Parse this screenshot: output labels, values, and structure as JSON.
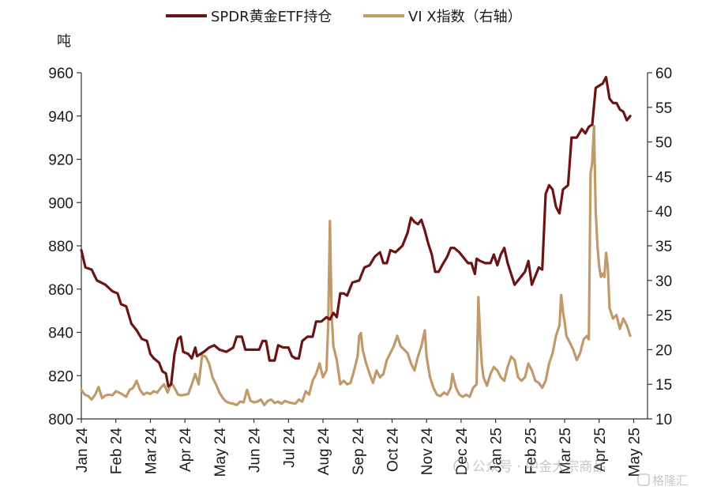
{
  "chart_data": {
    "type": "line",
    "title": "",
    "legend_placement": "top",
    "x_labels": [
      "Jan 24",
      "Feb 24",
      "Mar 24",
      "Apr 24",
      "May 24",
      "Jun 24",
      "Jul 24",
      "Aug 24",
      "Sep 24",
      "Oct 24",
      "Nov 24",
      "Dec 24",
      "Jan 25",
      "Feb 25",
      "Mar 25",
      "Apr 25",
      "May 25"
    ],
    "x_range": [
      0,
      16.4
    ],
    "y_left": {
      "label": "吨",
      "min": 800,
      "max": 960,
      "ticks": [
        800,
        820,
        840,
        860,
        880,
        900,
        920,
        940,
        960
      ]
    },
    "y_right": {
      "label": "",
      "min": 10,
      "max": 60,
      "ticks": [
        10,
        15,
        20,
        25,
        30,
        35,
        40,
        45,
        50,
        55,
        60
      ]
    },
    "series": [
      {
        "name": "SPDR黄金ETF持仓",
        "axis": "left",
        "color": "#6b1414",
        "points": [
          [
            0,
            878
          ],
          [
            0.12,
            870
          ],
          [
            0.3,
            869
          ],
          [
            0.45,
            864
          ],
          [
            0.7,
            862
          ],
          [
            0.9,
            859
          ],
          [
            1.05,
            858
          ],
          [
            1.15,
            853
          ],
          [
            1.3,
            852
          ],
          [
            1.45,
            844
          ],
          [
            1.6,
            841
          ],
          [
            1.75,
            837
          ],
          [
            1.9,
            836
          ],
          [
            2.0,
            830
          ],
          [
            2.1,
            828
          ],
          [
            2.25,
            826
          ],
          [
            2.35,
            822
          ],
          [
            2.45,
            821
          ],
          [
            2.52,
            815
          ],
          [
            2.6,
            816
          ],
          [
            2.7,
            830
          ],
          [
            2.8,
            837
          ],
          [
            2.88,
            838
          ],
          [
            2.95,
            831
          ],
          [
            3.1,
            830
          ],
          [
            3.2,
            828
          ],
          [
            3.3,
            833
          ],
          [
            3.35,
            829
          ],
          [
            3.55,
            831
          ],
          [
            3.7,
            833
          ],
          [
            3.85,
            834
          ],
          [
            4.0,
            832
          ],
          [
            4.2,
            831
          ],
          [
            4.4,
            833
          ],
          [
            4.5,
            838
          ],
          [
            4.65,
            838
          ],
          [
            4.75,
            832
          ],
          [
            4.9,
            832
          ],
          [
            5.15,
            832
          ],
          [
            5.25,
            836
          ],
          [
            5.35,
            836
          ],
          [
            5.45,
            827
          ],
          [
            5.6,
            827
          ],
          [
            5.7,
            834
          ],
          [
            5.85,
            833
          ],
          [
            6.0,
            833
          ],
          [
            6.1,
            829
          ],
          [
            6.2,
            828
          ],
          [
            6.3,
            828
          ],
          [
            6.4,
            836
          ],
          [
            6.55,
            838
          ],
          [
            6.7,
            838
          ],
          [
            6.8,
            845
          ],
          [
            6.95,
            845
          ],
          [
            7.1,
            847
          ],
          [
            7.2,
            846
          ],
          [
            7.3,
            849
          ],
          [
            7.4,
            847
          ],
          [
            7.5,
            858
          ],
          [
            7.6,
            858
          ],
          [
            7.7,
            857
          ],
          [
            7.85,
            863
          ],
          [
            8.05,
            864
          ],
          [
            8.2,
            870
          ],
          [
            8.35,
            871
          ],
          [
            8.5,
            875
          ],
          [
            8.65,
            877
          ],
          [
            8.75,
            872
          ],
          [
            8.85,
            872
          ],
          [
            8.95,
            878
          ],
          [
            9.1,
            877
          ],
          [
            9.3,
            880
          ],
          [
            9.45,
            886
          ],
          [
            9.55,
            893
          ],
          [
            9.65,
            891
          ],
          [
            9.75,
            890
          ],
          [
            9.85,
            892
          ],
          [
            9.95,
            887
          ],
          [
            10.05,
            881
          ],
          [
            10.15,
            876
          ],
          [
            10.25,
            868
          ],
          [
            10.35,
            868
          ],
          [
            10.45,
            871
          ],
          [
            10.6,
            875
          ],
          [
            10.7,
            879
          ],
          [
            10.8,
            879
          ],
          [
            10.95,
            877
          ],
          [
            11.05,
            875
          ],
          [
            11.2,
            872
          ],
          [
            11.3,
            872
          ],
          [
            11.4,
            867
          ],
          [
            11.45,
            874
          ],
          [
            11.55,
            873
          ],
          [
            11.7,
            872
          ],
          [
            11.85,
            872
          ],
          [
            11.95,
            876
          ],
          [
            12.05,
            871
          ],
          [
            12.15,
            876
          ],
          [
            12.25,
            879
          ],
          [
            12.35,
            872
          ],
          [
            12.45,
            867
          ],
          [
            12.55,
            862
          ],
          [
            12.65,
            864
          ],
          [
            12.75,
            866
          ],
          [
            12.85,
            868
          ],
          [
            12.95,
            873
          ],
          [
            13.05,
            862
          ],
          [
            13.15,
            866
          ],
          [
            13.25,
            870
          ],
          [
            13.35,
            869
          ],
          [
            13.45,
            904
          ],
          [
            13.55,
            908
          ],
          [
            13.65,
            906
          ],
          [
            13.75,
            898
          ],
          [
            13.85,
            895
          ],
          [
            13.95,
            906
          ],
          [
            14.1,
            908
          ],
          [
            14.2,
            930
          ],
          [
            14.35,
            930
          ],
          [
            14.5,
            934
          ],
          [
            14.6,
            932
          ],
          [
            14.7,
            935
          ],
          [
            14.8,
            936
          ],
          [
            14.9,
            953
          ],
          [
            15.0,
            954
          ],
          [
            15.1,
            955
          ],
          [
            15.2,
            958
          ],
          [
            15.3,
            948
          ],
          [
            15.4,
            946
          ],
          [
            15.5,
            946
          ],
          [
            15.6,
            943
          ],
          [
            15.7,
            942
          ],
          [
            15.8,
            938
          ],
          [
            15.9,
            940
          ]
        ]
      },
      {
        "name": "VI X指数（右轴）",
        "axis": "right",
        "color": "#c19a6b",
        "points": [
          [
            0,
            14.2
          ],
          [
            0.1,
            13.5
          ],
          [
            0.2,
            13.3
          ],
          [
            0.3,
            12.8
          ],
          [
            0.4,
            13.5
          ],
          [
            0.5,
            14.6
          ],
          [
            0.6,
            13.0
          ],
          [
            0.7,
            13.4
          ],
          [
            0.8,
            13.5
          ],
          [
            0.9,
            13.4
          ],
          [
            1.0,
            14.0
          ],
          [
            1.1,
            13.8
          ],
          [
            1.2,
            13.5
          ],
          [
            1.3,
            13.2
          ],
          [
            1.4,
            14.2
          ],
          [
            1.5,
            14.5
          ],
          [
            1.6,
            15.5
          ],
          [
            1.7,
            14.2
          ],
          [
            1.8,
            13.5
          ],
          [
            1.9,
            13.8
          ],
          [
            2.0,
            13.6
          ],
          [
            2.1,
            14.0
          ],
          [
            2.2,
            13.8
          ],
          [
            2.3,
            14.5
          ],
          [
            2.4,
            15.0
          ],
          [
            2.5,
            13.8
          ],
          [
            2.6,
            15.2
          ],
          [
            2.7,
            14.5
          ],
          [
            2.8,
            13.5
          ],
          [
            2.9,
            13.4
          ],
          [
            3.0,
            13.5
          ],
          [
            3.1,
            13.6
          ],
          [
            3.2,
            15.0
          ],
          [
            3.3,
            16.5
          ],
          [
            3.4,
            15.0
          ],
          [
            3.5,
            19.2
          ],
          [
            3.6,
            19.0
          ],
          [
            3.7,
            18.0
          ],
          [
            3.8,
            16.0
          ],
          [
            3.9,
            15.0
          ],
          [
            4.0,
            13.8
          ],
          [
            4.1,
            13.0
          ],
          [
            4.2,
            12.5
          ],
          [
            4.3,
            12.3
          ],
          [
            4.4,
            12.2
          ],
          [
            4.5,
            12.0
          ],
          [
            4.6,
            12.5
          ],
          [
            4.7,
            12.4
          ],
          [
            4.8,
            14.2
          ],
          [
            4.9,
            12.6
          ],
          [
            5.0,
            12.4
          ],
          [
            5.1,
            12.5
          ],
          [
            5.2,
            12.8
          ],
          [
            5.3,
            12.0
          ],
          [
            5.4,
            12.6
          ],
          [
            5.5,
            12.8
          ],
          [
            5.6,
            12.3
          ],
          [
            5.7,
            12.5
          ],
          [
            5.8,
            12.2
          ],
          [
            5.9,
            12.6
          ],
          [
            6.0,
            12.4
          ],
          [
            6.1,
            12.3
          ],
          [
            6.2,
            12.2
          ],
          [
            6.3,
            12.8
          ],
          [
            6.4,
            12.5
          ],
          [
            6.5,
            14.0
          ],
          [
            6.6,
            13.5
          ],
          [
            6.7,
            15.5
          ],
          [
            6.8,
            16.5
          ],
          [
            6.9,
            18.0
          ],
          [
            7.0,
            16.0
          ],
          [
            7.1,
            17.0
          ],
          [
            7.15,
            23.4
          ],
          [
            7.2,
            38.6
          ],
          [
            7.25,
            25.0
          ],
          [
            7.3,
            20.5
          ],
          [
            7.4,
            18.5
          ],
          [
            7.5,
            15.0
          ],
          [
            7.6,
            15.5
          ],
          [
            7.7,
            15.0
          ],
          [
            7.8,
            15.2
          ],
          [
            7.9,
            17.0
          ],
          [
            8.0,
            19.0
          ],
          [
            8.05,
            22.0
          ],
          [
            8.1,
            22.4
          ],
          [
            8.15,
            20.0
          ],
          [
            8.25,
            18.0
          ],
          [
            8.35,
            16.5
          ],
          [
            8.45,
            15.2
          ],
          [
            8.55,
            17.0
          ],
          [
            8.65,
            16.0
          ],
          [
            8.75,
            16.5
          ],
          [
            8.85,
            18.5
          ],
          [
            8.95,
            19.5
          ],
          [
            9.05,
            20.5
          ],
          [
            9.15,
            22.0
          ],
          [
            9.25,
            20.5
          ],
          [
            9.35,
            20.0
          ],
          [
            9.45,
            19.5
          ],
          [
            9.55,
            18.0
          ],
          [
            9.65,
            17.0
          ],
          [
            9.75,
            19.0
          ],
          [
            9.85,
            20.5
          ],
          [
            9.95,
            22.8
          ],
          [
            10.0,
            19.0
          ],
          [
            10.05,
            17.5
          ],
          [
            10.1,
            16.0
          ],
          [
            10.2,
            14.5
          ],
          [
            10.3,
            13.5
          ],
          [
            10.4,
            13.3
          ],
          [
            10.5,
            13.8
          ],
          [
            10.6,
            13.5
          ],
          [
            10.7,
            14.5
          ],
          [
            10.75,
            16.5
          ],
          [
            10.85,
            14.5
          ],
          [
            10.95,
            13.5
          ],
          [
            11.05,
            13.2
          ],
          [
            11.15,
            13.5
          ],
          [
            11.25,
            13.2
          ],
          [
            11.35,
            14.5
          ],
          [
            11.45,
            15.0
          ],
          [
            11.5,
            27.6
          ],
          [
            11.55,
            22.0
          ],
          [
            11.6,
            18.0
          ],
          [
            11.65,
            16.0
          ],
          [
            11.75,
            14.8
          ],
          [
            11.85,
            16.5
          ],
          [
            11.95,
            17.5
          ],
          [
            12.05,
            17.0
          ],
          [
            12.15,
            16.0
          ],
          [
            12.25,
            15.5
          ],
          [
            12.35,
            17.5
          ],
          [
            12.45,
            19.0
          ],
          [
            12.55,
            18.5
          ],
          [
            12.65,
            16.0
          ],
          [
            12.75,
            15.5
          ],
          [
            12.85,
            16.0
          ],
          [
            12.95,
            18.0
          ],
          [
            13.05,
            17.0
          ],
          [
            13.15,
            15.5
          ],
          [
            13.25,
            15.2
          ],
          [
            13.35,
            14.5
          ],
          [
            13.45,
            15.5
          ],
          [
            13.55,
            18.0
          ],
          [
            13.65,
            19.5
          ],
          [
            13.75,
            22.0
          ],
          [
            13.85,
            23.5
          ],
          [
            13.9,
            27.9
          ],
          [
            13.95,
            25.5
          ],
          [
            14.0,
            24.0
          ],
          [
            14.05,
            22.0
          ],
          [
            14.15,
            21.0
          ],
          [
            14.25,
            20.0
          ],
          [
            14.35,
            18.5
          ],
          [
            14.45,
            19.5
          ],
          [
            14.55,
            21.5
          ],
          [
            14.65,
            22.0
          ],
          [
            14.7,
            21.5
          ],
          [
            14.75,
            45.5
          ],
          [
            14.8,
            47.0
          ],
          [
            14.85,
            52.3
          ],
          [
            14.9,
            40.0
          ],
          [
            14.95,
            35.0
          ],
          [
            15.0,
            32.0
          ],
          [
            15.05,
            30.5
          ],
          [
            15.1,
            31.0
          ],
          [
            15.15,
            30.5
          ],
          [
            15.2,
            34.0
          ],
          [
            15.25,
            32.0
          ],
          [
            15.3,
            26.0
          ],
          [
            15.4,
            24.5
          ],
          [
            15.5,
            25.0
          ],
          [
            15.6,
            23.0
          ],
          [
            15.7,
            24.5
          ],
          [
            15.8,
            23.5
          ],
          [
            15.9,
            22.0
          ]
        ]
      }
    ]
  },
  "watermark": {
    "text": "公众号 · 中金大宗商品",
    "logo_text": "格隆汇"
  },
  "colors": {
    "gold_line": "#6b1414",
    "vix_line": "#c19a6b",
    "axis": "#333333"
  }
}
